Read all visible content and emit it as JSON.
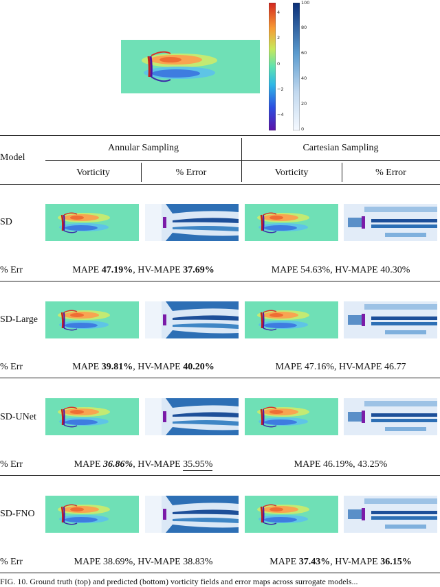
{
  "colorbar_vorticity": {
    "ticks": [
      "4",
      "2",
      "0",
      "−2",
      "−4"
    ]
  },
  "colorbar_error": {
    "ticks": [
      "100",
      "80",
      "60",
      "40",
      "20",
      "0"
    ]
  },
  "table": {
    "model_header": "Model",
    "annular_header": "Annular Sampling",
    "cartesian_header": "Cartesian Sampling",
    "sub_headers": [
      "Vorticity",
      "% Error",
      "Vorticity",
      "% Error"
    ],
    "err_label": "% Err",
    "rows": [
      {
        "model": "SD",
        "ann": {
          "mape_label": "MAPE ",
          "mape": "47.19%",
          "sep": ", HV-MAPE ",
          "hv": "37.69%"
        },
        "cart": "MAPE 54.63%, HV-MAPE 40.30%"
      },
      {
        "model": "SD-Large",
        "ann": {
          "mape_label": "MAPE ",
          "mape": "39.81%",
          "sep": ", HV-MAPE ",
          "hv": "40.20%"
        },
        "cart": "MAPE 47.16%, HV-MAPE 46.77"
      },
      {
        "model": "SD-UNet",
        "ann": {
          "mape_label": "MAPE ",
          "mape": "36.86%",
          "sep": ", HV-MAPE ",
          "hv": "35.95%"
        },
        "cart": "MAPE 46.19%, 43.25%"
      },
      {
        "model": "SD-FNO",
        "ann": "MAPE 38.69%, HV-MAPE 38.83%",
        "cart": {
          "mape_label": "MAPE ",
          "mape": "37.43%",
          "sep": ", HV-MAPE ",
          "hv": "36.15%"
        }
      }
    ]
  },
  "caption": "FIG. 10. Ground truth (top) and predicted (bottom) vorticity fields and error maps across surrogate models..."
}
